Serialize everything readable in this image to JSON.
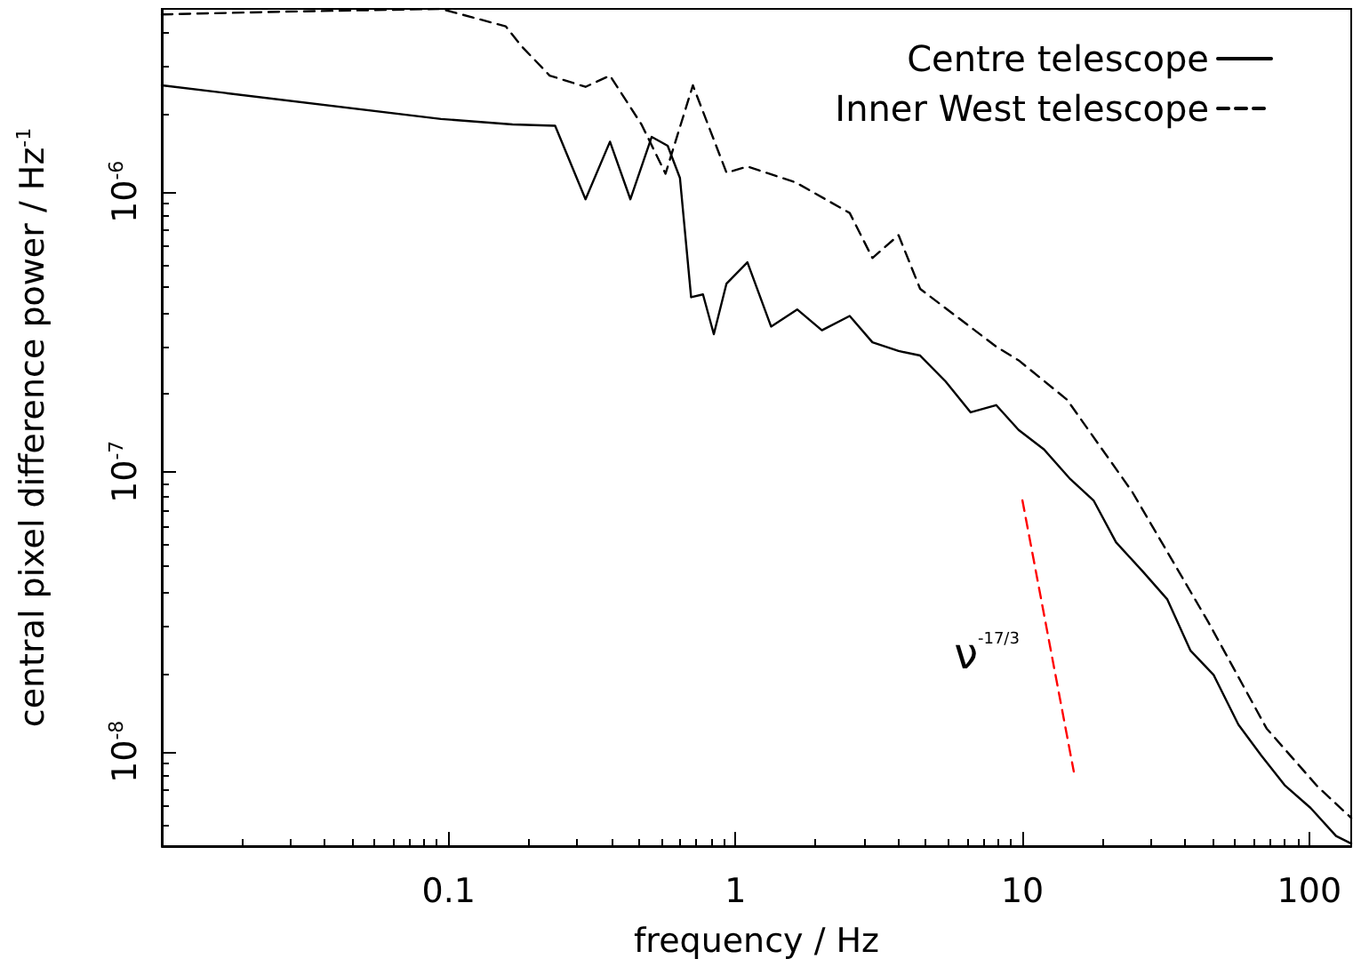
{
  "chart_data": {
    "type": "line",
    "xlabel": "frequency / Hz",
    "ylabel": "central pixel difference power / Hz$^{-1}$",
    "log": "xy",
    "grid": false,
    "legend": "top right",
    "marker": "none",
    "xlim": [
      0.01,
      140
    ],
    "xticks": [
      0.1,
      1,
      10,
      100
    ],
    "ylim": [
      4.6e-09,
      4.5e-06
    ],
    "yticks": [
      {
        "value": 1e-08,
        "label": "10$^{-8}$"
      },
      {
        "value": 1e-07,
        "label": "10$^{-7}$"
      },
      {
        "value": 1e-06,
        "label": "10$^{-6}$"
      }
    ],
    "series": [
      {
        "name": "Centre telescope",
        "color": "#000000",
        "line_style": "solid",
        "x": [
          0.01,
          0.094,
          0.167,
          0.235,
          0.3,
          0.365,
          0.43,
          0.51,
          0.58,
          0.64,
          0.7,
          0.77,
          0.84,
          0.93,
          1.1,
          1.33,
          1.64,
          2.0,
          2.5,
          3.0,
          3.7,
          4.4,
          5.4,
          6.6,
          8.1,
          9.7,
          11.9,
          14.7,
          17.7,
          21.2,
          26.3,
          32,
          38.5,
          46.4,
          56.6,
          68,
          82,
          101,
          124,
          140
        ],
        "values": [
          2.4e-06,
          1.82e-06,
          1.74e-06,
          1.72e-06,
          9.4e-07,
          1.51e-06,
          9.4e-07,
          1.57e-06,
          1.46e-06,
          1.12e-06,
          4.2e-07,
          4.3e-07,
          3.1e-07,
          4.7e-07,
          5.6e-07,
          3.3e-07,
          3.8e-07,
          3.2e-07,
          3.6e-07,
          2.9e-07,
          2.7e-07,
          2.6e-07,
          2.1e-07,
          1.63e-07,
          1.73e-07,
          1.41e-07,
          1.2e-07,
          9.4e-08,
          7.9e-08,
          5.6e-08,
          4.4e-08,
          3.5e-08,
          2.3e-08,
          1.88e-08,
          1.25e-08,
          9.7e-09,
          7.6e-09,
          6.3e-09,
          5e-09,
          4.7e-09
        ]
      },
      {
        "name": "Inner West telescope",
        "color": "#000000",
        "line_style": "dashed",
        "x": [
          0.01,
          0.027,
          0.094,
          0.158,
          0.18,
          0.225,
          0.3,
          0.365,
          0.47,
          0.57,
          0.71,
          0.93,
          1.1,
          1.62,
          2.5,
          3.0,
          3.7,
          4.4,
          8.1,
          9.7,
          14.3,
          24.1,
          44.5,
          71,
          107,
          140
        ],
        "values": [
          4.3e-06,
          4.4e-06,
          4.5e-06,
          3.9e-06,
          3.3e-06,
          2.6e-06,
          2.37e-06,
          2.6e-06,
          1.74e-06,
          1.16e-06,
          2.4e-06,
          1.17e-06,
          1.23e-06,
          1.08e-06,
          8.4e-07,
          5.8e-07,
          7e-07,
          4.5e-07,
          2.8e-07,
          2.5e-07,
          1.81e-07,
          8.5e-08,
          2.9e-08,
          1.21e-08,
          7.5e-09,
          5.8e-09
        ]
      },
      {
        "color": "#ff0000",
        "line_style": "dashed",
        "x": [
          10,
          15.1
        ],
        "values": [
          7.9e-08,
          8.5e-09
        ]
      }
    ],
    "annotations": [
      "ν$^{-17/3}$"
    ]
  }
}
